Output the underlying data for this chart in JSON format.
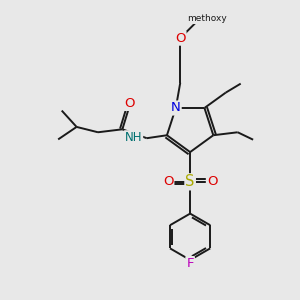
{
  "bg_color": "#e8e8e8",
  "bond_color": "#1a1a1a",
  "atom_colors": {
    "N": "#0000dd",
    "O": "#dd0000",
    "S": "#aaaa00",
    "F": "#bb00bb",
    "H": "#007070",
    "C": "#1a1a1a"
  },
  "font_size_atom": 8.5,
  "fig_size": [
    3.0,
    3.0
  ],
  "dpi": 100,
  "lw": 1.4
}
